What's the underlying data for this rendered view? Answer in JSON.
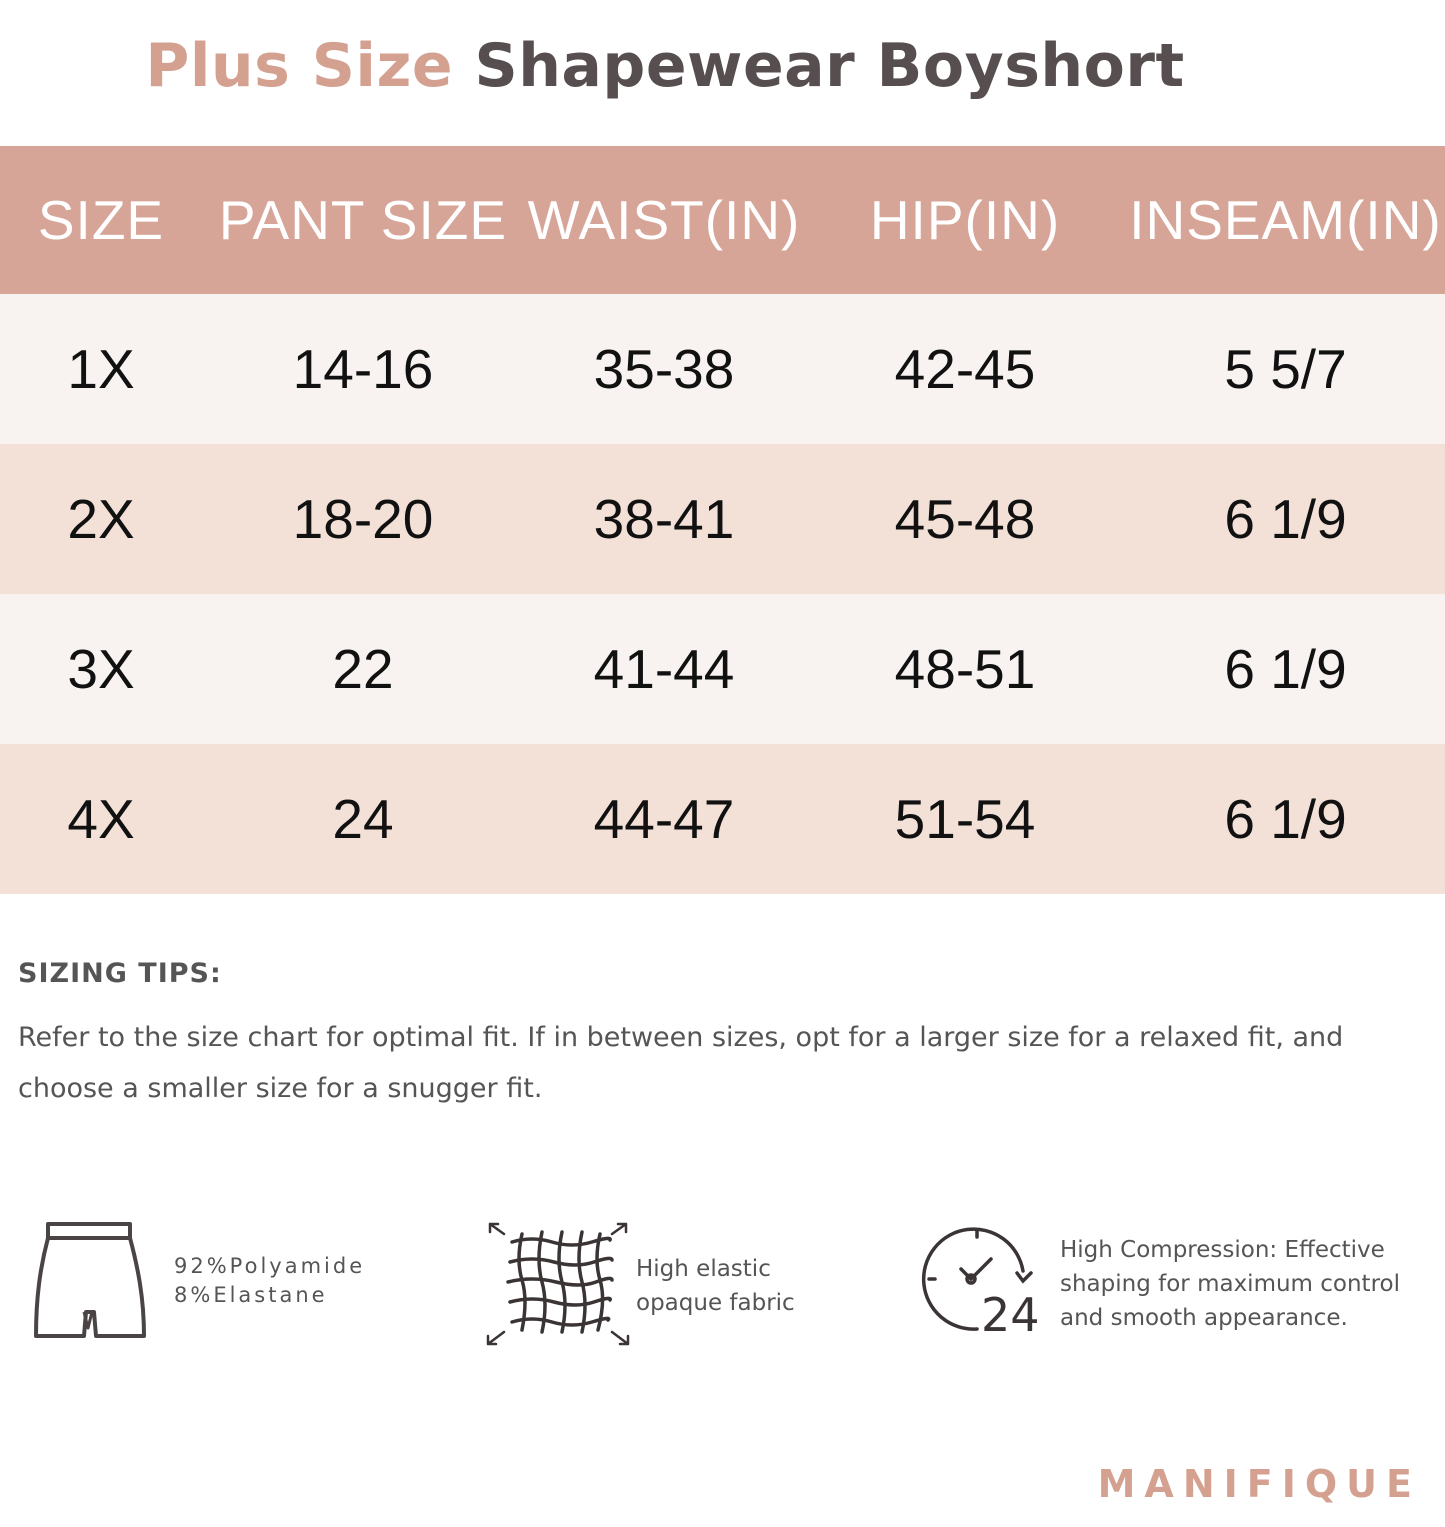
{
  "title": {
    "accent": "Plus Size",
    "main": "Shapewear Boyshort"
  },
  "table": {
    "headers": [
      "SIZE",
      "PANT SIZE",
      "WAIST(IN)",
      "HIP(IN)",
      "INSEAM(IN)"
    ],
    "rows": [
      [
        "1X",
        "14-16",
        "35-38",
        "42-45",
        "5 5/7"
      ],
      [
        "2X",
        "18-20",
        "38-41",
        "45-48",
        "6 1/9"
      ],
      [
        "3X",
        "22",
        "41-44",
        "48-51",
        "6 1/9"
      ],
      [
        "4X",
        "24",
        "44-47",
        "51-54",
        "6 1/9"
      ]
    ]
  },
  "tips": {
    "heading": "SIZING TIPS:",
    "body": "Refer to the size chart for optimal fit. If in between sizes, opt for a  larger size for a relaxed fit, and choose a smaller size for a snugger fit."
  },
  "features": {
    "material": {
      "icon": "shorts-icon",
      "line1": "92%Polyamide",
      "line2": "8%Elastane"
    },
    "fabric": {
      "icon": "stretch-fabric-icon",
      "line1": "High elastic",
      "line2": "opaque fabric"
    },
    "compression": {
      "icon": "clock-24-icon",
      "badge": "24",
      "line1": "High Compression: Effective",
      "line2": "shaping for maximum control",
      "line3": "and smooth appearance."
    }
  },
  "brand": "MANIFIQUE",
  "colors": {
    "accent": "#d4a190",
    "header_bg": "#d6a598",
    "row_light": "#f8f3f1",
    "row_dark": "#f3e1d8",
    "title_dark": "#574e4f",
    "text_gray": "#555555"
  }
}
